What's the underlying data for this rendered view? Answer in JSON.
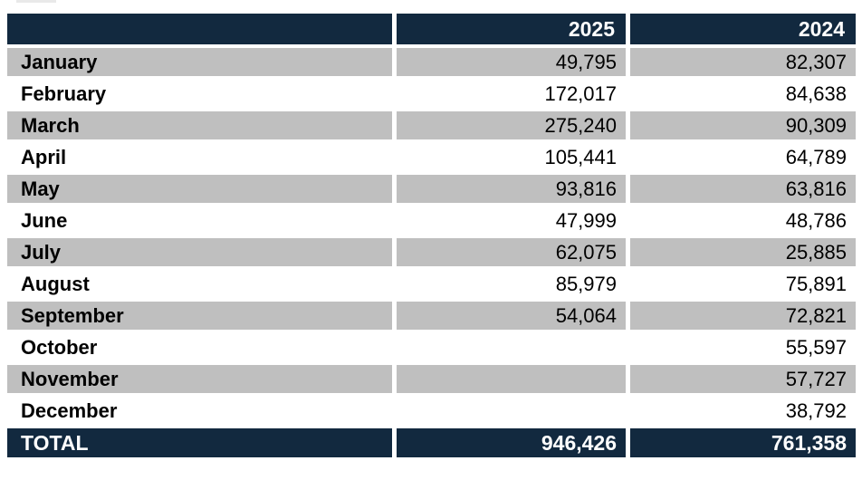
{
  "table": {
    "header": {
      "col_2025": "2025",
      "col_2024": "2024"
    },
    "rows": [
      {
        "month": "January",
        "y2025": "49,795",
        "y2024": "82,307"
      },
      {
        "month": "February",
        "y2025": "172,017",
        "y2024": "84,638"
      },
      {
        "month": "March",
        "y2025": "275,240",
        "y2024": "90,309"
      },
      {
        "month": "April",
        "y2025": "105,441",
        "y2024": "64,789"
      },
      {
        "month": "May",
        "y2025": "93,816",
        "y2024": "63,816"
      },
      {
        "month": "June",
        "y2025": "47,999",
        "y2024": "48,786"
      },
      {
        "month": "July",
        "y2025": "62,075",
        "y2024": "25,885"
      },
      {
        "month": "August",
        "y2025": "85,979",
        "y2024": "75,891"
      },
      {
        "month": "September",
        "y2025": "54,064",
        "y2024": "72,821"
      },
      {
        "month": "October",
        "y2025": "",
        "y2024": "55,597"
      },
      {
        "month": "November",
        "y2025": "",
        "y2024": "57,727"
      },
      {
        "month": "December",
        "y2025": "",
        "y2024": "38,792"
      }
    ],
    "total": {
      "label": "TOTAL",
      "y2025": "946,426",
      "y2024": "761,358"
    }
  },
  "colors": {
    "header_bg": "#12293F",
    "total_bg": "#12293F",
    "stripe_gray": "#BFBFBF",
    "row_white": "#FFFFFF",
    "header_text": "#FFFFFF",
    "body_text": "#000000"
  },
  "chart_data": {
    "type": "table",
    "categories": [
      "January",
      "February",
      "March",
      "April",
      "May",
      "June",
      "July",
      "August",
      "September",
      "October",
      "November",
      "December"
    ],
    "series": [
      {
        "name": "2025",
        "values": [
          49795,
          172017,
          275240,
          105441,
          93816,
          47999,
          62075,
          85979,
          54064,
          null,
          null,
          null
        ],
        "total": 946426
      },
      {
        "name": "2024",
        "values": [
          82307,
          84638,
          90309,
          64789,
          63816,
          48786,
          25885,
          75891,
          72821,
          55597,
          57727,
          38792
        ],
        "total": 761358
      }
    ],
    "layout": {
      "striped_rows": true,
      "header_position": "top",
      "totals_row": "bottom",
      "value_alignment": "right"
    }
  }
}
